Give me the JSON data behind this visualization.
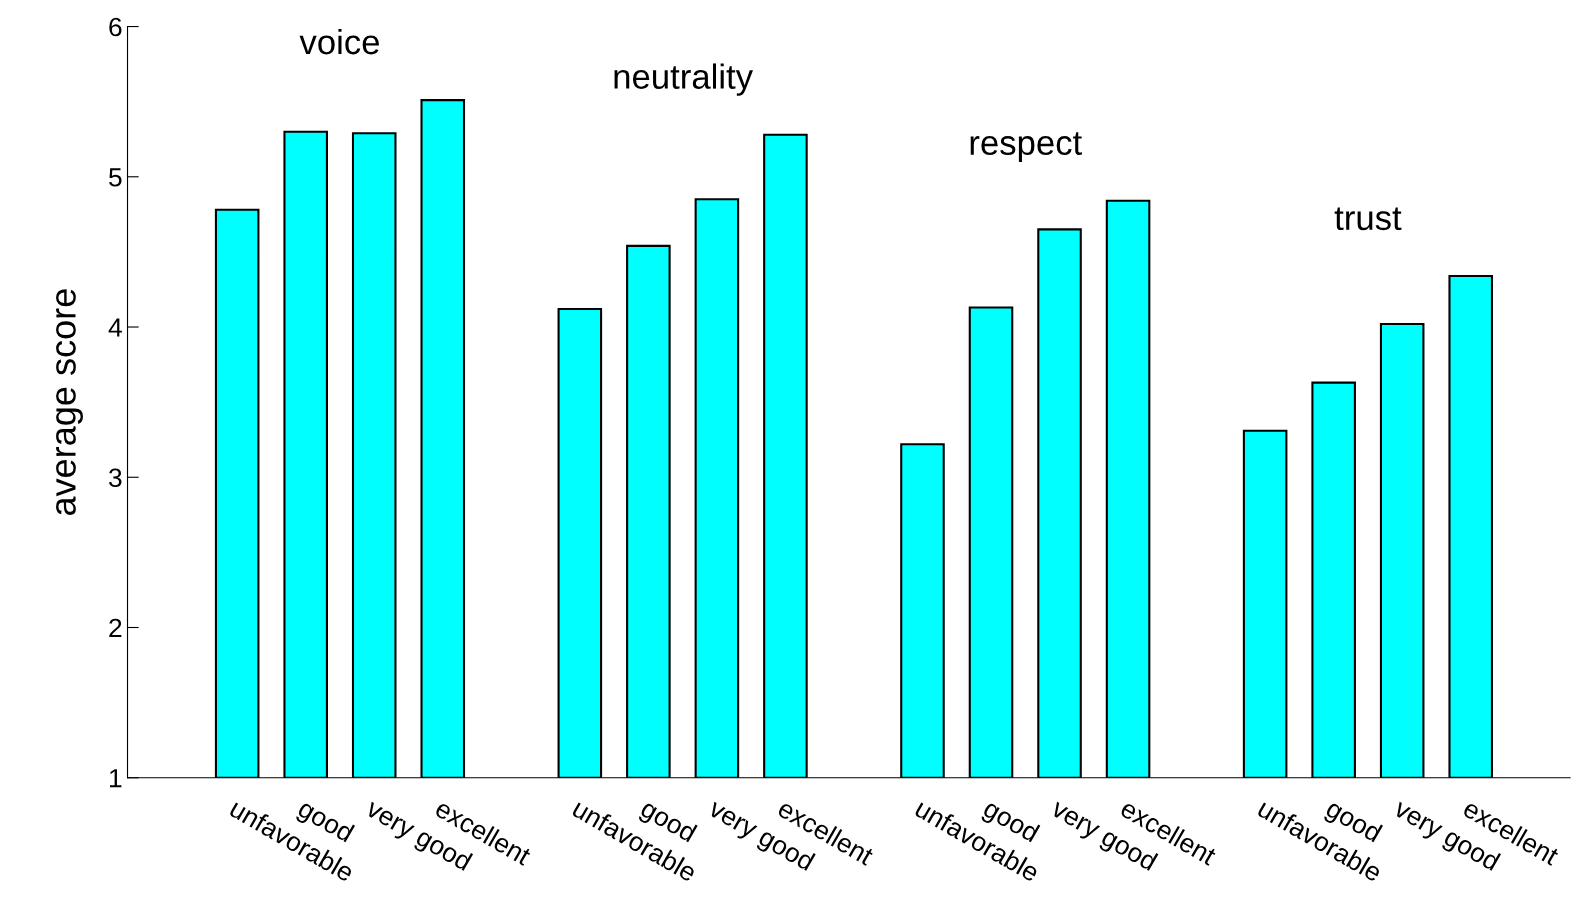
{
  "chart_data": {
    "type": "bar",
    "ylabel": "average score",
    "categories": [
      "unfavorable",
      "good",
      "very good",
      "excellent",
      null,
      "unfavorable",
      "good",
      "very good",
      "excellent",
      null,
      "unfavorable",
      "good",
      "very good",
      "excellent",
      null,
      "unfavorable",
      "good",
      "very good",
      "excellent"
    ],
    "values": [
      4.78,
      5.3,
      5.29,
      5.51,
      null,
      4.12,
      4.54,
      4.85,
      5.28,
      null,
      3.22,
      4.13,
      4.65,
      4.84,
      null,
      3.31,
      3.63,
      4.02,
      4.34
    ],
    "color": "#00ffff",
    "annotations": [
      "voice",
      "neutrality",
      "respect",
      "trust"
    ],
    "ylim": [
      1,
      6
    ],
    "yticks": [
      1,
      2,
      3,
      4,
      5,
      6
    ],
    "grid": false,
    "legend": false
  }
}
